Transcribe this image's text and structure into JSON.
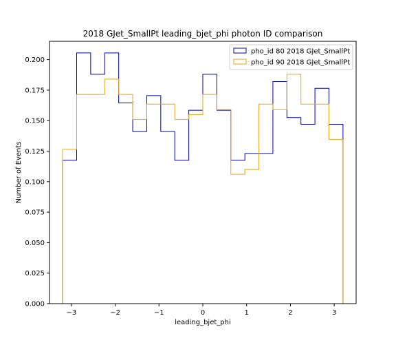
{
  "chart_data": {
    "type": "step-histogram",
    "title": "2018 GJet_SmallPt leading_bjet_phi photon ID comparison",
    "xlabel": "leading_bjet_phi",
    "ylabel": "Number of Events",
    "xlim": [
      -3.5,
      3.5
    ],
    "ylim": [
      0,
      0.215
    ],
    "xticks": [
      -3,
      -2,
      -1,
      0,
      1,
      2,
      3
    ],
    "xtick_labels": [
      "−3",
      "−2",
      "−1",
      "0",
      "1",
      "2",
      "3"
    ],
    "yticks": [
      0.0,
      0.025,
      0.05,
      0.075,
      0.1,
      0.125,
      0.15,
      0.175,
      0.2
    ],
    "ytick_labels": [
      "0.000",
      "0.025",
      "0.050",
      "0.075",
      "0.100",
      "0.125",
      "0.150",
      "0.175",
      "0.200"
    ],
    "bin_edges": [
      -3.2,
      -2.88,
      -2.56,
      -2.24,
      -1.92,
      -1.6,
      -1.28,
      -0.96,
      -0.64,
      -0.32,
      0.0,
      0.32,
      0.64,
      0.96,
      1.28,
      1.6,
      1.92,
      2.24,
      2.56,
      2.88,
      3.2
    ],
    "legend_position": "top-right",
    "series": [
      {
        "name": "pho_id 80 2018 GJet_SmallPt",
        "color": "#0000aa",
        "values": [
          0.1175,
          0.2055,
          0.188,
          0.2055,
          0.1645,
          0.141,
          0.1705,
          0.141,
          0.1175,
          0.1585,
          0.188,
          0.1585,
          0.1175,
          0.123,
          0.123,
          0.182,
          0.1525,
          0.147,
          0.1765,
          0.147
        ]
      },
      {
        "name": "pho_id 90 2018 GJet_SmallPt",
        "color": "#e8a317",
        "values": [
          0.1265,
          0.1715,
          0.1715,
          0.184,
          0.1715,
          0.151,
          0.1635,
          0.1635,
          0.151,
          0.155,
          0.1715,
          0.159,
          0.106,
          0.11,
          0.1635,
          0.159,
          0.188,
          0.1635,
          0.1635,
          0.1345
        ]
      }
    ]
  }
}
